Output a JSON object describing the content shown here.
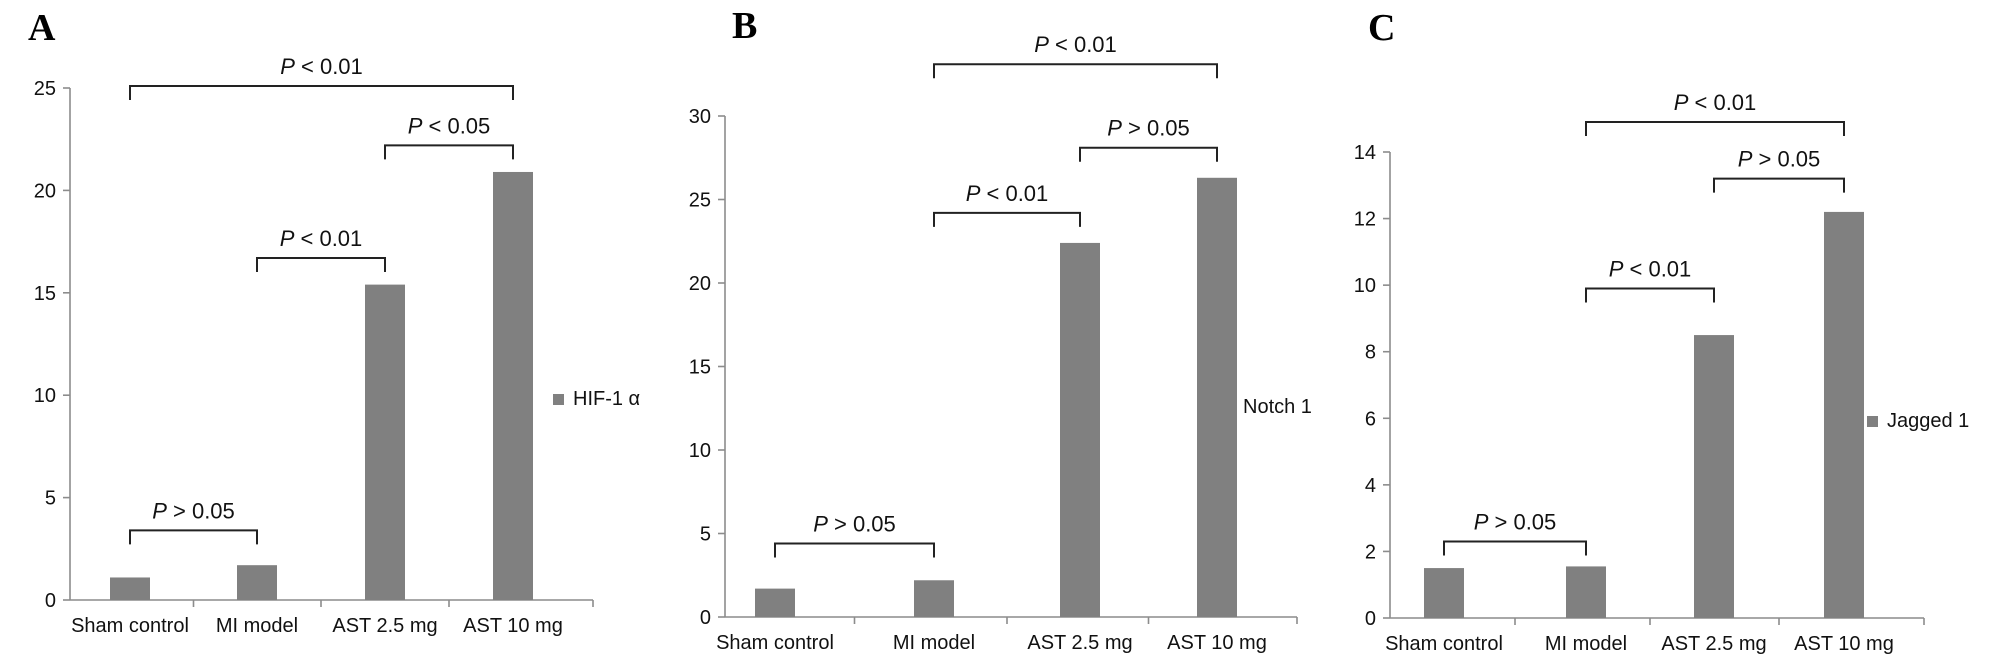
{
  "chart_data": [
    {
      "type": "bar",
      "panel_label": "A",
      "categories": [
        "Sham control",
        "MI model",
        "AST 2.5 mg",
        "AST 10 mg"
      ],
      "series": [
        {
          "name": "HIF-1 α",
          "values": [
            1.1,
            1.7,
            15.4,
            20.9
          ]
        }
      ],
      "ylim": [
        0,
        25
      ],
      "yticks": [
        0,
        5,
        10,
        15,
        20,
        25
      ],
      "legend_position": "right",
      "annotations": [
        {
          "from": 0,
          "to": 1,
          "label": "P > 0.05",
          "level": 3.4
        },
        {
          "from": 1,
          "to": 2,
          "label": "P < 0.01",
          "level": 16.7
        },
        {
          "from": 2,
          "to": 3,
          "label": "P < 0.05",
          "level": 22.2
        },
        {
          "from": 0,
          "to": 3,
          "label": "P < 0.01",
          "level": 25.1
        }
      ]
    },
    {
      "type": "bar",
      "panel_label": "B",
      "categories": [
        "Sham control",
        "MI model",
        "AST 2.5 mg",
        "AST 10 mg"
      ],
      "series": [
        {
          "name": "Notch 1",
          "values": [
            1.7,
            2.2,
            22.4,
            26.3
          ]
        }
      ],
      "ylim": [
        0,
        30
      ],
      "yticks": [
        0,
        5,
        10,
        15,
        20,
        25,
        30
      ],
      "legend_position": "right",
      "annotations": [
        {
          "from": 0,
          "to": 1,
          "label": "P > 0.05",
          "level": 4.4
        },
        {
          "from": 1,
          "to": 2,
          "label": "P < 0.01",
          "level": 24.2
        },
        {
          "from": 2,
          "to": 3,
          "label": "P > 0.05",
          "level": 28.1
        },
        {
          "from": 1,
          "to": 3,
          "label": "P < 0.01",
          "level": 33.1
        }
      ]
    },
    {
      "type": "bar",
      "panel_label": "C",
      "categories": [
        "Sham control",
        "MI model",
        "AST 2.5 mg",
        "AST 10 mg"
      ],
      "series": [
        {
          "name": "Jagged 1",
          "values": [
            1.5,
            1.55,
            8.5,
            12.2
          ]
        }
      ],
      "ylim": [
        0,
        14
      ],
      "yticks": [
        0,
        2,
        4,
        6,
        8,
        10,
        12,
        14
      ],
      "legend_position": "right",
      "annotations": [
        {
          "from": 0,
          "to": 1,
          "label": "P > 0.05",
          "level": 2.3
        },
        {
          "from": 1,
          "to": 2,
          "label": "P < 0.01",
          "level": 9.9
        },
        {
          "from": 2,
          "to": 3,
          "label": "P > 0.05",
          "level": 13.2
        },
        {
          "from": 1,
          "to": 3,
          "label": "P < 0.01",
          "level": 14.9
        }
      ]
    }
  ]
}
